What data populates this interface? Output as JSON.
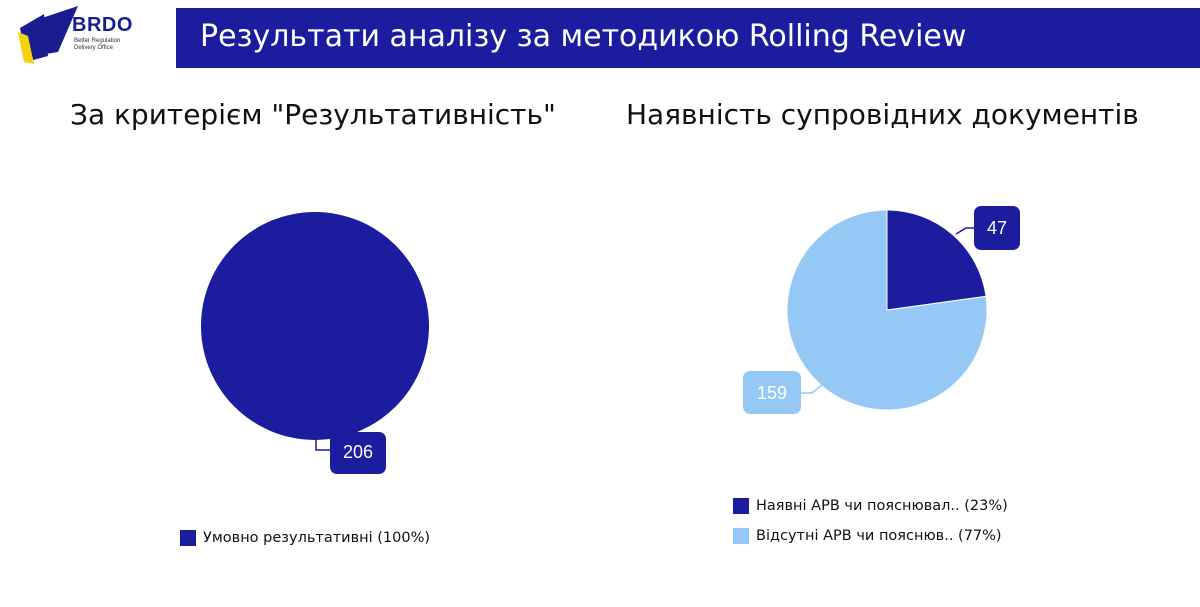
{
  "logo": {
    "name": "BRDO",
    "sub": [
      "Better Regulation",
      "Delivery Office"
    ],
    "colors": {
      "blue": "#1a1d8f",
      "yellow": "#f5d10c"
    }
  },
  "header": {
    "title": "Результати аналізу за методикою Rolling Review",
    "background": "#1b1d9e"
  },
  "chart_data": [
    {
      "type": "pie",
      "title": "За критерієм \"Результативність\"",
      "categories": [
        "Умовно результативні"
      ],
      "values": [
        206
      ],
      "percent_labels": [
        "100%"
      ],
      "colors": [
        "#1b1d9e"
      ],
      "legend": [
        "Умовно результативні (100%)"
      ],
      "legend_position": "bottom"
    },
    {
      "type": "pie",
      "title": "Наявність супровідних документів",
      "categories": [
        "Наявні АРВ чи пояснювал..",
        "Відсутні АРВ чи пояснюв.."
      ],
      "values": [
        47,
        159
      ],
      "percent_labels": [
        "23%",
        "77%"
      ],
      "colors": [
        "#1b1d9e",
        "#96c8f5"
      ],
      "legend": [
        "Наявні АРВ чи пояснювал.. (23%)",
        "Відсутні АРВ чи пояснюв.. (77%)"
      ],
      "legend_position": "bottom"
    }
  ]
}
